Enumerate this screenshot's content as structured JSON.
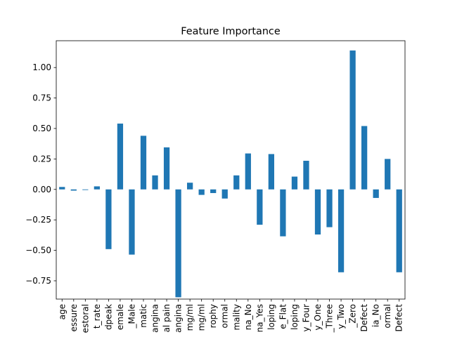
{
  "chart_data": {
    "type": "bar",
    "title": "Feature Importance",
    "xlabel": "",
    "ylabel": "",
    "ylim": [
      -0.9,
      1.22
    ],
    "yticks": [
      -0.75,
      -0.5,
      -0.25,
      0.0,
      0.25,
      0.5,
      0.75,
      1.0
    ],
    "ytick_labels": [
      "−0.75",
      "−0.50",
      "−0.25",
      "0.00",
      "0.25",
      "0.50",
      "0.75",
      "1.00"
    ],
    "grid": false,
    "legend": "none",
    "bar_color": "#1f77b4",
    "categories": [
      "age",
      "essure",
      "estoral",
      "t_rate",
      "dpeak",
      "emale",
      "_Male",
      "matic",
      "angina",
      "al pain",
      "angina",
      "mg/ml",
      "mg/ml",
      "rophy",
      "ormal",
      "mality",
      "na_No",
      "na_Yes",
      "loping",
      "e_Flat",
      "loping",
      "y_Four",
      "y_One",
      "_Three",
      "y_Two",
      "_Zero",
      "Defect",
      "ia_No",
      "ormal",
      "Defect"
    ],
    "values": [
      0.02,
      -0.01,
      -0.005,
      0.025,
      -0.49,
      0.54,
      -0.535,
      0.44,
      0.115,
      0.345,
      -0.885,
      0.055,
      -0.045,
      -0.03,
      -0.075,
      0.115,
      0.295,
      -0.29,
      0.29,
      -0.385,
      0.105,
      0.235,
      -0.37,
      -0.31,
      -0.68,
      1.14,
      0.52,
      -0.07,
      0.25,
      -0.68
    ]
  }
}
